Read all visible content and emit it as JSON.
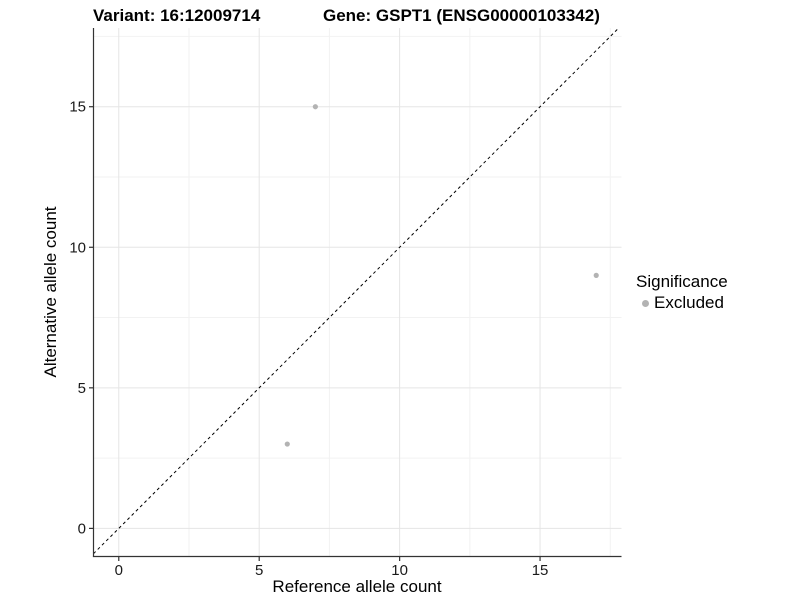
{
  "title": {
    "variant": "Variant: 16:12009714",
    "gene": "Gene: GSPT1 (ENSG00000103342)"
  },
  "axes": {
    "x": {
      "label": "Reference allele count",
      "ticks": [
        0,
        5,
        10,
        15
      ],
      "minor_ticks": [
        2.5,
        7.5,
        12.5,
        17.5
      ],
      "range": [
        -0.9,
        17.9
      ]
    },
    "y": {
      "label": "Alternative allele count",
      "ticks": [
        0,
        5,
        10,
        15
      ],
      "minor_ticks": [
        2.5,
        7.5,
        12.5,
        17.5
      ],
      "range": [
        -1.0,
        17.8
      ]
    }
  },
  "legend": {
    "title": "Significance",
    "items": [
      {
        "label": "Excluded",
        "color": "#b3b3b3"
      }
    ]
  },
  "colors": {
    "point": "#b3b3b3",
    "major_grid": "#e5e5e5",
    "minor_grid": "#f2f2f2",
    "axis_line": "#333333",
    "tick_text": "#1a1a1a",
    "reference_line": "#000000",
    "background": "#ffffff"
  },
  "chart_data": {
    "type": "scatter",
    "title": "Variant: 16:12009714 — Gene: GSPT1 (ENSG00000103342)",
    "xlabel": "Reference allele count",
    "ylabel": "Alternative allele count",
    "xlim": [
      -0.9,
      17.9
    ],
    "ylim": [
      -1.0,
      17.8
    ],
    "grid": {
      "major": [
        0,
        5,
        10,
        15
      ],
      "minor": [
        2.5,
        7.5,
        12.5,
        17.5
      ]
    },
    "legend_position": "right",
    "series": [
      {
        "name": "Excluded",
        "color": "#b3b3b3",
        "points": [
          {
            "x": 7,
            "y": 15
          },
          {
            "x": 17,
            "y": 9
          },
          {
            "x": 6,
            "y": 3
          }
        ]
      }
    ],
    "reference_line": {
      "type": "identity",
      "equation": "y = x",
      "style": "dashed",
      "color": "#000000"
    }
  }
}
